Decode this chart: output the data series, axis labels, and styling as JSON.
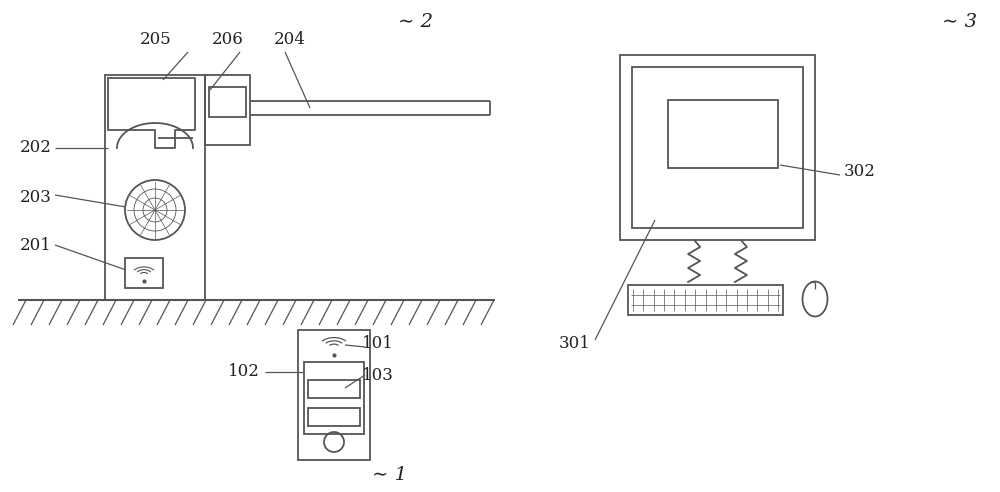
{
  "bg_color": "#ffffff",
  "line_color": "#555555",
  "label_color": "#222222",
  "fig_width": 10.0,
  "fig_height": 4.92,
  "dpi": 100
}
